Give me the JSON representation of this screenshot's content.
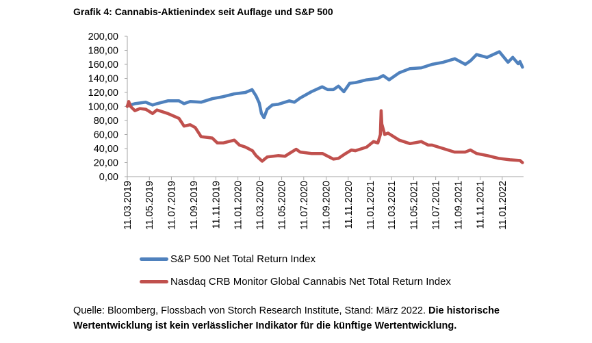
{
  "title": "Grafik 4: Cannabis-Aktienindex seit Auflage und S&P 500",
  "source_text": "Quelle: Bloomberg, Flossbach von Storch Research Institute, Stand: März 2022.",
  "source_bold": "Die historische Wertentwicklung ist kein verlässlicher Indikator für die künftige Wertentwicklung.",
  "colors": {
    "sp500": "#4f81bd",
    "cannabis": "#c0504d",
    "axis": "#a6a6a6"
  },
  "chart_data": {
    "type": "line",
    "title": "Grafik 4: Cannabis-Aktienindex seit Auflage und S&P 500",
    "ylim": [
      0,
      200
    ],
    "y_ticks": [
      "0,00",
      "20,00",
      "40,00",
      "60,00",
      "80,00",
      "100,00",
      "120,00",
      "140,00",
      "160,00",
      "180,00",
      "200,00"
    ],
    "x_ticks": [
      "11.03.2019",
      "11.05.2019",
      "11.07.2019",
      "11.09.2019",
      "11.11.2019",
      "11.01.2020",
      "11.03.2020",
      "11.05.2020",
      "11.07.2020",
      "11.09.2020",
      "11.11.2020",
      "11.01.2021",
      "11.03.2021",
      "11.05.2021",
      "11.07.2021",
      "11.09.2021",
      "11.11.2021",
      "11.01.2022"
    ],
    "grid": false,
    "legend_position": "bottom",
    "x_start": "2019-03-11",
    "x_end": "2022-03-11",
    "series": [
      {
        "name": "S&P 500 Net Total Return Index",
        "points": [
          [
            "2019-03-11",
            101
          ],
          [
            "2019-04-01",
            104
          ],
          [
            "2019-05-01",
            106
          ],
          [
            "2019-05-20",
            102
          ],
          [
            "2019-06-01",
            104
          ],
          [
            "2019-07-01",
            108
          ],
          [
            "2019-08-01",
            108
          ],
          [
            "2019-08-15",
            104
          ],
          [
            "2019-09-01",
            107
          ],
          [
            "2019-10-01",
            106
          ],
          [
            "2019-11-01",
            111
          ],
          [
            "2019-12-01",
            114
          ],
          [
            "2020-01-01",
            118
          ],
          [
            "2020-02-01",
            120
          ],
          [
            "2020-02-19",
            124
          ],
          [
            "2020-03-01",
            115
          ],
          [
            "2020-03-10",
            105
          ],
          [
            "2020-03-16",
            90
          ],
          [
            "2020-03-23",
            84
          ],
          [
            "2020-04-01",
            96
          ],
          [
            "2020-04-15",
            102
          ],
          [
            "2020-05-01",
            103
          ],
          [
            "2020-06-01",
            108
          ],
          [
            "2020-06-15",
            106
          ],
          [
            "2020-07-01",
            112
          ],
          [
            "2020-08-01",
            121
          ],
          [
            "2020-08-31",
            128
          ],
          [
            "2020-09-15",
            124
          ],
          [
            "2020-10-01",
            124
          ],
          [
            "2020-10-15",
            129
          ],
          [
            "2020-10-30",
            121
          ],
          [
            "2020-11-15",
            133
          ],
          [
            "2020-12-01",
            134
          ],
          [
            "2021-01-01",
            138
          ],
          [
            "2021-02-01",
            140
          ],
          [
            "2021-02-16",
            144
          ],
          [
            "2021-03-04",
            138
          ],
          [
            "2021-04-01",
            148
          ],
          [
            "2021-05-01",
            154
          ],
          [
            "2021-06-01",
            155
          ],
          [
            "2021-07-01",
            160
          ],
          [
            "2021-08-01",
            163
          ],
          [
            "2021-09-02",
            168
          ],
          [
            "2021-10-01",
            160
          ],
          [
            "2021-10-15",
            165
          ],
          [
            "2021-11-01",
            174
          ],
          [
            "2021-11-30",
            170
          ],
          [
            "2022-01-03",
            178
          ],
          [
            "2022-01-27",
            163
          ],
          [
            "2022-02-09",
            170
          ],
          [
            "2022-02-24",
            161
          ],
          [
            "2022-03-01",
            164
          ],
          [
            "2022-03-08",
            156
          ]
        ]
      },
      {
        "name": "Nasdaq CRB Monitor Global Cannabis Net Total Return Index",
        "points": [
          [
            "2019-03-11",
            100
          ],
          [
            "2019-03-15",
            107
          ],
          [
            "2019-03-20",
            100
          ],
          [
            "2019-04-01",
            94
          ],
          [
            "2019-04-15",
            97
          ],
          [
            "2019-05-01",
            96
          ],
          [
            "2019-05-20",
            90
          ],
          [
            "2019-06-01",
            95
          ],
          [
            "2019-07-01",
            90
          ],
          [
            "2019-08-01",
            83
          ],
          [
            "2019-08-15",
            72
          ],
          [
            "2019-09-01",
            74
          ],
          [
            "2019-09-15",
            70
          ],
          [
            "2019-10-01",
            57
          ],
          [
            "2019-11-01",
            55
          ],
          [
            "2019-11-15",
            48
          ],
          [
            "2019-12-01",
            48
          ],
          [
            "2020-01-01",
            52
          ],
          [
            "2020-01-15",
            45
          ],
          [
            "2020-02-01",
            42
          ],
          [
            "2020-02-20",
            37
          ],
          [
            "2020-03-01",
            30
          ],
          [
            "2020-03-18",
            22
          ],
          [
            "2020-04-01",
            28
          ],
          [
            "2020-05-01",
            30
          ],
          [
            "2020-05-20",
            29
          ],
          [
            "2020-06-01",
            33
          ],
          [
            "2020-06-20",
            39
          ],
          [
            "2020-07-01",
            35
          ],
          [
            "2020-08-01",
            33
          ],
          [
            "2020-09-01",
            33
          ],
          [
            "2020-10-01",
            25
          ],
          [
            "2020-10-15",
            26
          ],
          [
            "2020-11-01",
            32
          ],
          [
            "2020-11-20",
            38
          ],
          [
            "2020-12-01",
            37
          ],
          [
            "2021-01-01",
            42
          ],
          [
            "2021-01-20",
            50
          ],
          [
            "2021-02-01",
            48
          ],
          [
            "2021-02-08",
            60
          ],
          [
            "2021-02-10",
            94
          ],
          [
            "2021-02-12",
            75
          ],
          [
            "2021-02-20",
            60
          ],
          [
            "2021-03-01",
            62
          ],
          [
            "2021-04-01",
            52
          ],
          [
            "2021-05-01",
            47
          ],
          [
            "2021-06-01",
            50
          ],
          [
            "2021-06-20",
            45
          ],
          [
            "2021-07-01",
            45
          ],
          [
            "2021-08-01",
            40
          ],
          [
            "2021-09-01",
            35
          ],
          [
            "2021-10-01",
            35
          ],
          [
            "2021-10-15",
            38
          ],
          [
            "2021-11-01",
            33
          ],
          [
            "2021-12-01",
            30
          ],
          [
            "2022-01-01",
            26
          ],
          [
            "2022-02-01",
            24
          ],
          [
            "2022-03-01",
            23
          ],
          [
            "2022-03-08",
            20
          ]
        ]
      }
    ]
  }
}
